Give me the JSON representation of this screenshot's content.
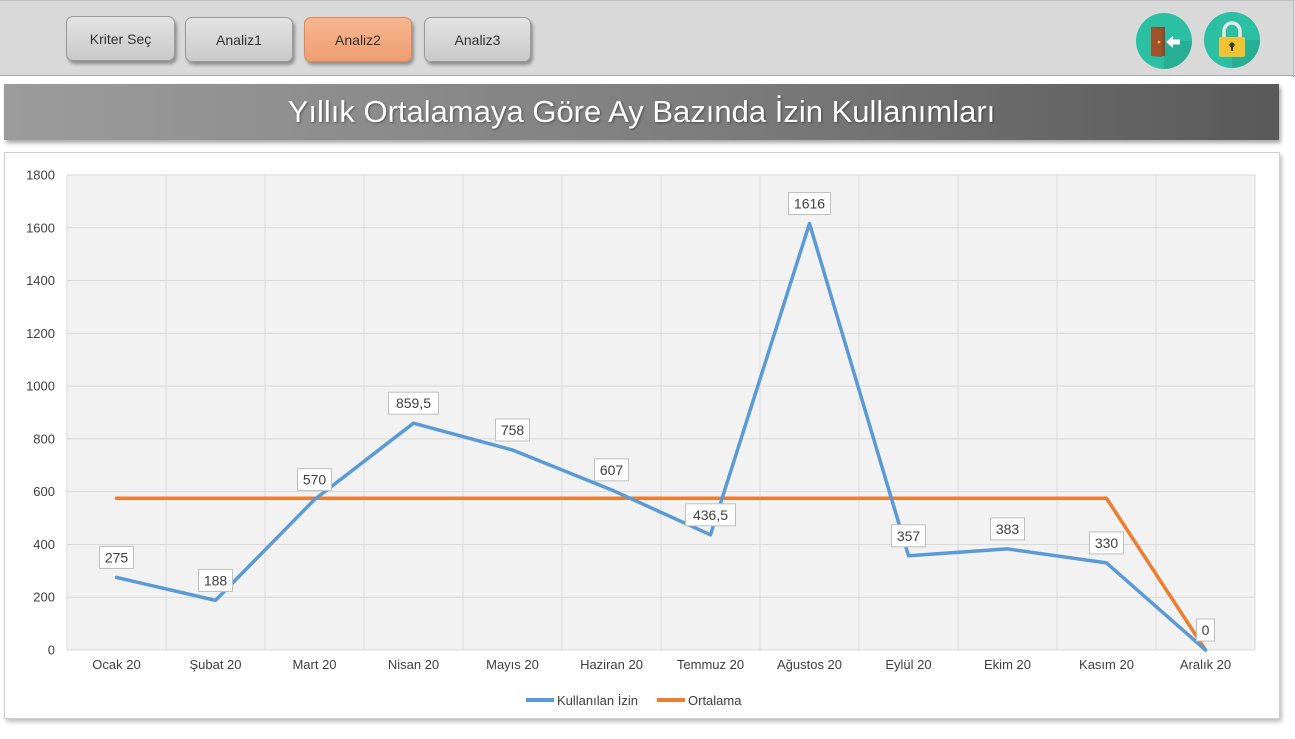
{
  "toolbar": {
    "buttons": [
      {
        "label": "Kriter Seç"
      },
      {
        "label": "Analiz1"
      },
      {
        "label": "Analiz2"
      },
      {
        "label": "Analiz3"
      }
    ],
    "icons": [
      "exit-door-icon",
      "lock-icon"
    ],
    "colors": {
      "button_active": "#f2a57a",
      "icon_circle": "#2bbfa4",
      "lock_body": "#f1c232"
    }
  },
  "title": "Yıllık Ortalamaya Göre Ay Bazında İzin Kullanımları",
  "chart_data": {
    "type": "line",
    "categories": [
      "Ocak 20",
      "Şubat 20",
      "Mart 20",
      "Nisan 20",
      "Mayıs 20",
      "Haziran 20",
      "Temmuz 20",
      "Ağustos 20",
      "Eylül 20",
      "Ekim 20",
      "Kasım 20",
      "Aralık 20"
    ],
    "series": [
      {
        "name": "Kullanılan İzin",
        "color": "#5b9bd5",
        "values": [
          275,
          188,
          570,
          859.5,
          758,
          607,
          436.5,
          1616,
          357,
          383,
          330,
          0
        ],
        "labels": [
          "275",
          "188",
          "570",
          "859,5",
          "758",
          "607",
          "436,5",
          "1616",
          "357",
          "383",
          "330",
          "0"
        ]
      },
      {
        "name": "Ortalama",
        "color": "#ed7d31",
        "values": [
          575,
          575,
          575,
          575,
          575,
          575,
          575,
          575,
          575,
          575,
          575,
          0
        ]
      }
    ],
    "ylim": [
      0,
      1800
    ],
    "yticks": [
      "0",
      "200",
      "400",
      "600",
      "800",
      "1000",
      "1200",
      "1400",
      "1600",
      "1800"
    ],
    "grid": true,
    "legend": "bottom"
  }
}
